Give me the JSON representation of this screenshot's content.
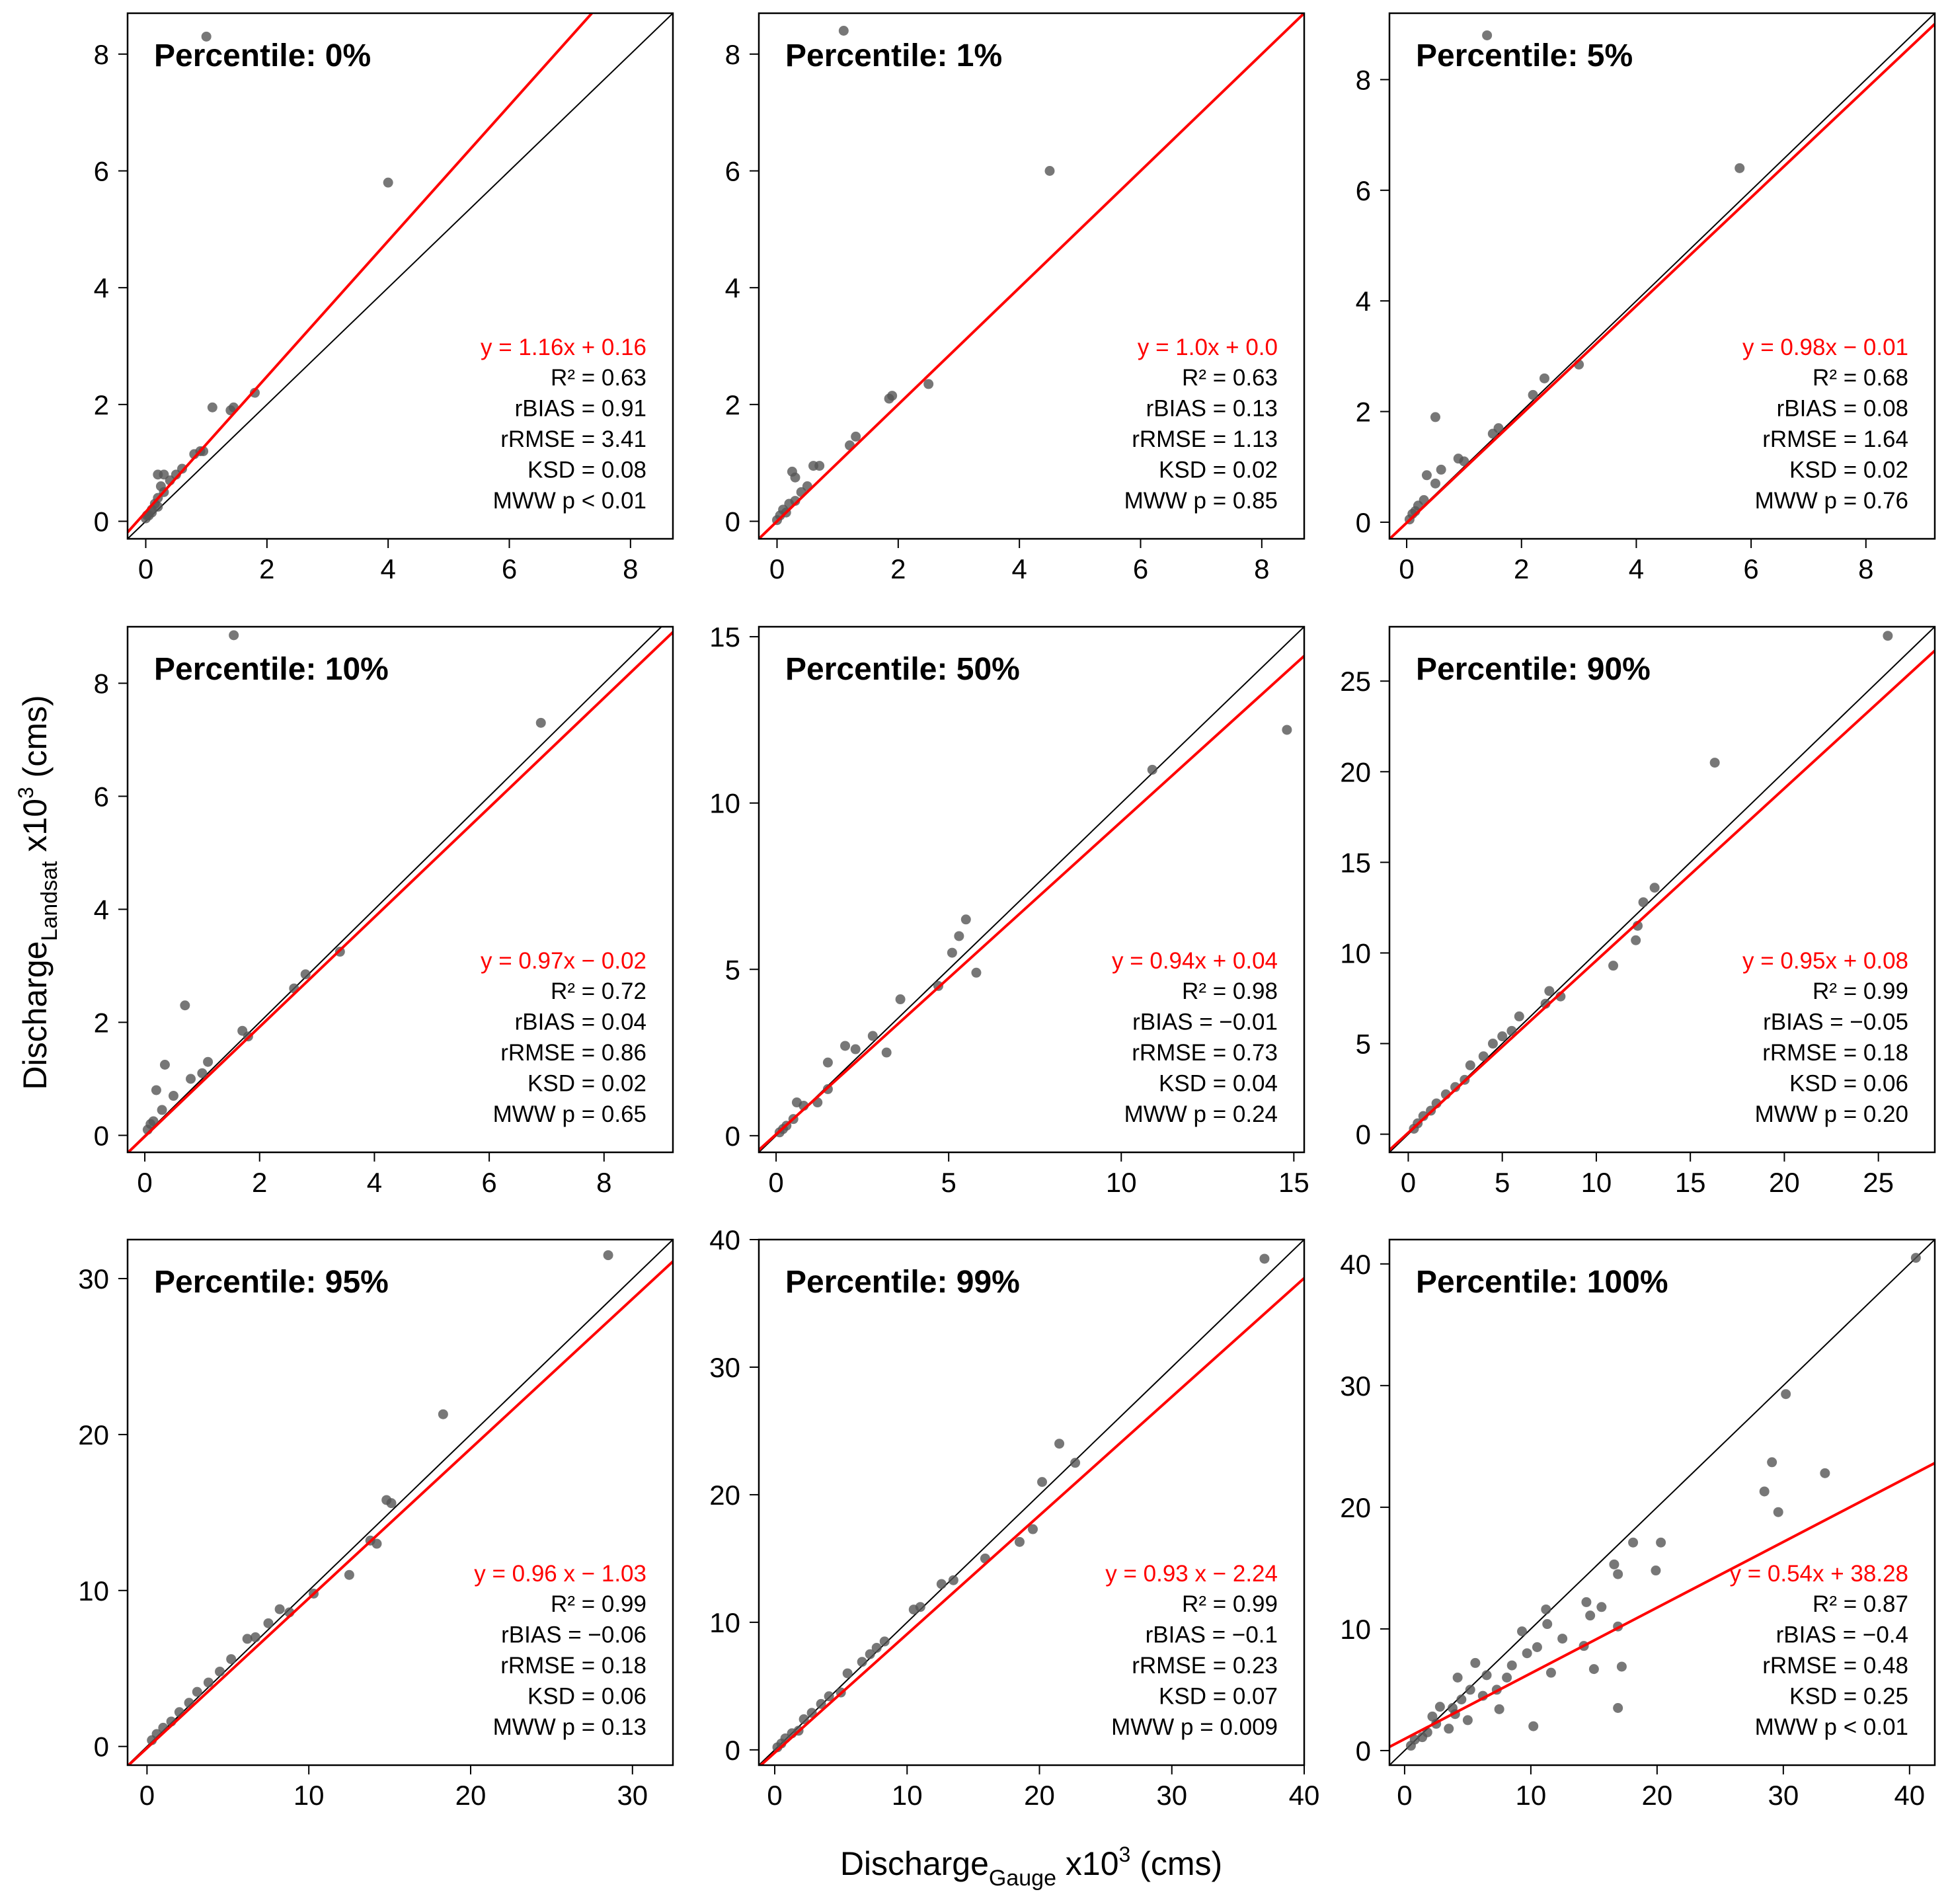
{
  "figure": {
    "xlabel": {
      "main": "Discharge",
      "sub": "Gauge",
      "rest": " x10",
      "sup": "3",
      "unit": " (cms)"
    },
    "ylabel": {
      "main": "Discharge",
      "sub": "Landsat",
      "rest": " x10",
      "sup": "3",
      "unit": " (cms)"
    }
  },
  "colors": {
    "regression_line": "#ff0000",
    "one_to_one_line": "#000000",
    "points": "#555555",
    "frame": "#000000"
  },
  "chart_data": [
    {
      "type": "scatter",
      "title": "Percentile: 0%",
      "xlim": [
        -0.3,
        8.7
      ],
      "ylim": [
        -0.3,
        8.7
      ],
      "xticks": [
        0,
        2,
        4,
        6,
        8
      ],
      "yticks": [
        0,
        2,
        4,
        6,
        8
      ],
      "regression": {
        "slope": 1.16,
        "intercept": 0.16,
        "label": "y = 1.16x + 0.16"
      },
      "stats": [
        "R² = 0.63",
        "rBIAS = 0.91",
        "rRMSE = 3.41",
        "KSD = 0.08",
        "MWW p < 0.01"
      ],
      "points": [
        [
          1.0,
          8.3
        ],
        [
          4.0,
          5.8
        ],
        [
          1.8,
          2.2
        ],
        [
          1.1,
          1.95
        ],
        [
          1.4,
          1.9
        ],
        [
          1.45,
          1.95
        ],
        [
          0.9,
          1.2
        ],
        [
          0.95,
          1.2
        ],
        [
          0.8,
          1.15
        ],
        [
          0.6,
          0.9
        ],
        [
          0.5,
          0.8
        ],
        [
          0.2,
          0.8
        ],
        [
          0.3,
          0.8
        ],
        [
          0.25,
          0.6
        ],
        [
          0.4,
          0.7
        ],
        [
          0.3,
          0.5
        ],
        [
          0.2,
          0.4
        ],
        [
          0.15,
          0.3
        ],
        [
          0.1,
          0.2
        ],
        [
          0.05,
          0.1
        ],
        [
          0.0,
          0.05
        ],
        [
          0.02,
          0.1
        ],
        [
          0.1,
          0.15
        ],
        [
          0.2,
          0.25
        ]
      ]
    },
    {
      "type": "scatter",
      "title": "Percentile: 1%",
      "xlim": [
        -0.3,
        8.7
      ],
      "ylim": [
        -0.3,
        8.7
      ],
      "xticks": [
        0,
        2,
        4,
        6,
        8
      ],
      "yticks": [
        0,
        2,
        4,
        6,
        8
      ],
      "regression": {
        "slope": 1.0,
        "intercept": 0.0,
        "label": "y = 1.0x + 0.0"
      },
      "stats": [
        "R² = 0.63",
        "rBIAS = 0.13",
        "rRMSE = 1.13",
        "KSD = 0.02",
        "MWW p = 0.85"
      ],
      "points": [
        [
          1.1,
          8.4
        ],
        [
          4.5,
          6.0
        ],
        [
          2.5,
          2.35
        ],
        [
          1.9,
          2.15
        ],
        [
          1.85,
          2.1
        ],
        [
          1.3,
          1.45
        ],
        [
          1.2,
          1.3
        ],
        [
          0.7,
          0.95
        ],
        [
          0.6,
          0.95
        ],
        [
          0.25,
          0.85
        ],
        [
          0.3,
          0.75
        ],
        [
          0.5,
          0.6
        ],
        [
          0.4,
          0.5
        ],
        [
          0.2,
          0.3
        ],
        [
          0.1,
          0.2
        ],
        [
          0.05,
          0.1
        ],
        [
          0.0,
          0.02
        ],
        [
          0.15,
          0.15
        ],
        [
          0.3,
          0.35
        ]
      ]
    },
    {
      "type": "scatter",
      "title": "Percentile: 5%",
      "xlim": [
        -0.3,
        9.2
      ],
      "ylim": [
        -0.3,
        9.2
      ],
      "xticks": [
        0,
        2,
        4,
        6,
        8
      ],
      "yticks": [
        0,
        2,
        4,
        6,
        8
      ],
      "regression": {
        "slope": 0.98,
        "intercept": -0.01,
        "label": "y = 0.98x − 0.01"
      },
      "stats": [
        "R² = 0.68",
        "rBIAS = 0.08",
        "rRMSE = 1.64",
        "KSD = 0.02",
        "MWW p = 0.76"
      ],
      "points": [
        [
          1.4,
          8.8
        ],
        [
          5.8,
          6.4
        ],
        [
          3.0,
          2.85
        ],
        [
          2.4,
          2.6
        ],
        [
          2.2,
          2.3
        ],
        [
          1.6,
          1.7
        ],
        [
          1.5,
          1.6
        ],
        [
          0.5,
          1.9
        ],
        [
          0.9,
          1.15
        ],
        [
          1.0,
          1.1
        ],
        [
          0.6,
          0.95
        ],
        [
          0.35,
          0.85
        ],
        [
          0.5,
          0.7
        ],
        [
          0.2,
          0.3
        ],
        [
          0.3,
          0.4
        ],
        [
          0.1,
          0.15
        ],
        [
          0.05,
          0.05
        ],
        [
          0.15,
          0.2
        ]
      ]
    },
    {
      "type": "scatter",
      "title": "Percentile: 10%",
      "xlim": [
        -0.3,
        9.2
      ],
      "ylim": [
        -0.3,
        9.0
      ],
      "xticks": [
        0,
        2,
        4,
        6,
        8
      ],
      "yticks": [
        0,
        2,
        4,
        6,
        8
      ],
      "regression": {
        "slope": 0.97,
        "intercept": -0.02,
        "label": "y = 0.97x − 0.02"
      },
      "stats": [
        "R² = 0.72",
        "rBIAS = 0.04",
        "rRMSE = 0.86",
        "KSD = 0.02",
        "MWW p = 0.65"
      ],
      "points": [
        [
          1.55,
          8.85
        ],
        [
          6.9,
          7.3
        ],
        [
          3.4,
          3.25
        ],
        [
          2.8,
          2.85
        ],
        [
          2.6,
          2.6
        ],
        [
          1.7,
          1.85
        ],
        [
          1.8,
          1.75
        ],
        [
          0.7,
          2.3
        ],
        [
          0.35,
          1.25
        ],
        [
          1.0,
          1.1
        ],
        [
          1.1,
          1.3
        ],
        [
          0.8,
          1.0
        ],
        [
          0.5,
          0.7
        ],
        [
          0.2,
          0.8
        ],
        [
          0.3,
          0.45
        ],
        [
          0.1,
          0.2
        ],
        [
          0.05,
          0.1
        ],
        [
          0.15,
          0.25
        ]
      ]
    },
    {
      "type": "scatter",
      "title": "Percentile: 50%",
      "xlim": [
        -0.5,
        15.3
      ],
      "ylim": [
        -0.5,
        15.3
      ],
      "xticks": [
        0,
        5,
        10,
        15
      ],
      "yticks": [
        0,
        5,
        10,
        15
      ],
      "regression": {
        "slope": 0.94,
        "intercept": 0.04,
        "label": "y = 0.94x + 0.04"
      },
      "stats": [
        "R² = 0.98",
        "rBIAS = −0.01",
        "rRMSE = 0.73",
        "KSD = 0.04",
        "MWW p = 0.24"
      ],
      "points": [
        [
          14.8,
          12.2
        ],
        [
          10.9,
          11.0
        ],
        [
          5.5,
          6.5
        ],
        [
          5.3,
          6.0
        ],
        [
          5.1,
          5.5
        ],
        [
          5.8,
          4.9
        ],
        [
          4.7,
          4.5
        ],
        [
          3.6,
          4.1
        ],
        [
          3.2,
          2.5
        ],
        [
          2.8,
          3.0
        ],
        [
          2.3,
          2.6
        ],
        [
          2.0,
          2.7
        ],
        [
          1.5,
          2.2
        ],
        [
          1.5,
          1.4
        ],
        [
          1.2,
          1.0
        ],
        [
          0.6,
          1.0
        ],
        [
          0.8,
          0.9
        ],
        [
          0.5,
          0.5
        ],
        [
          0.3,
          0.3
        ],
        [
          0.1,
          0.1
        ],
        [
          0.2,
          0.2
        ]
      ]
    },
    {
      "type": "scatter",
      "title": "Percentile: 90%",
      "xlim": [
        -1.0,
        28.0
      ],
      "ylim": [
        -1.0,
        28.0
      ],
      "xticks": [
        0,
        5,
        10,
        15,
        20,
        25
      ],
      "yticks": [
        0,
        5,
        10,
        15,
        20,
        25
      ],
      "regression": {
        "slope": 0.95,
        "intercept": 0.08,
        "label": "y = 0.95x + 0.08"
      },
      "stats": [
        "R² = 0.99",
        "rBIAS = −0.05",
        "rRMSE = 0.18",
        "KSD = 0.06",
        "MWW p = 0.20"
      ],
      "points": [
        [
          25.5,
          27.5
        ],
        [
          16.3,
          20.5
        ],
        [
          13.1,
          13.6
        ],
        [
          12.5,
          12.8
        ],
        [
          12.2,
          11.5
        ],
        [
          12.1,
          10.7
        ],
        [
          10.9,
          9.3
        ],
        [
          8.1,
          7.6
        ],
        [
          7.5,
          7.9
        ],
        [
          7.3,
          7.2
        ],
        [
          5.9,
          6.5
        ],
        [
          5.5,
          5.7
        ],
        [
          5.0,
          5.4
        ],
        [
          4.5,
          5.0
        ],
        [
          4.0,
          4.3
        ],
        [
          3.3,
          3.8
        ],
        [
          3.0,
          3.0
        ],
        [
          2.5,
          2.6
        ],
        [
          2.0,
          2.2
        ],
        [
          1.5,
          1.7
        ],
        [
          1.2,
          1.3
        ],
        [
          0.8,
          1.0
        ],
        [
          0.5,
          0.6
        ],
        [
          0.3,
          0.3
        ]
      ]
    },
    {
      "type": "scatter",
      "title": "Percentile: 95%",
      "xlim": [
        -1.2,
        32.5
      ],
      "ylim": [
        -1.2,
        32.5
      ],
      "xticks": [
        0,
        10,
        20,
        30
      ],
      "yticks": [
        0,
        10,
        20,
        30
      ],
      "regression": {
        "slope": 0.96,
        "intercept": -1.03,
        "label": "y = 0.96 x − 1.03"
      },
      "stats": [
        "R² = 0.99",
        "rBIAS = −0.06",
        "rRMSE = 0.18",
        "KSD = 0.06",
        "MWW p = 0.13"
      ],
      "points": [
        [
          28.5,
          31.5
        ],
        [
          18.3,
          21.3
        ],
        [
          15.1,
          15.6
        ],
        [
          14.8,
          15.8
        ],
        [
          14.2,
          13.0
        ],
        [
          13.8,
          13.2
        ],
        [
          12.5,
          11.0
        ],
        [
          10.3,
          9.8
        ],
        [
          8.8,
          8.6
        ],
        [
          8.2,
          8.8
        ],
        [
          7.5,
          7.9
        ],
        [
          6.7,
          7.0
        ],
        [
          6.2,
          6.9
        ],
        [
          5.2,
          5.6
        ],
        [
          4.5,
          4.8
        ],
        [
          3.8,
          4.1
        ],
        [
          3.1,
          3.5
        ],
        [
          2.6,
          2.8
        ],
        [
          2.0,
          2.2
        ],
        [
          1.5,
          1.6
        ],
        [
          1.0,
          1.2
        ],
        [
          0.6,
          0.8
        ],
        [
          0.3,
          0.4
        ]
      ]
    },
    {
      "type": "scatter",
      "title": "Percentile: 99%",
      "xlim": [
        -1.2,
        40.0
      ],
      "ylim": [
        -1.2,
        40.0
      ],
      "xticks": [
        0,
        10,
        20,
        30,
        40
      ],
      "yticks": [
        0,
        10,
        20,
        30,
        40
      ],
      "regression": {
        "slope": 0.93,
        "intercept": -2.24,
        "label": "y = 0.93 x − 2.24"
      },
      "stats": [
        "R² = 0.99",
        "rBIAS = −0.1",
        "rRMSE = 0.23",
        "KSD = 0.07",
        "MWW p = 0.009"
      ],
      "points": [
        [
          37.0,
          38.5
        ],
        [
          21.5,
          24.0
        ],
        [
          22.7,
          22.5
        ],
        [
          20.2,
          21.0
        ],
        [
          19.5,
          17.3
        ],
        [
          18.5,
          16.3
        ],
        [
          15.9,
          15.0
        ],
        [
          13.5,
          13.3
        ],
        [
          12.6,
          13.0
        ],
        [
          11.0,
          11.2
        ],
        [
          10.5,
          11.0
        ],
        [
          8.3,
          8.5
        ],
        [
          7.7,
          8.0
        ],
        [
          7.2,
          7.5
        ],
        [
          6.6,
          6.9
        ],
        [
          5.5,
          6.0
        ],
        [
          5.0,
          4.5
        ],
        [
          4.1,
          4.2
        ],
        [
          3.5,
          3.6
        ],
        [
          2.8,
          2.9
        ],
        [
          2.2,
          2.4
        ],
        [
          1.8,
          1.5
        ],
        [
          1.3,
          1.3
        ],
        [
          0.8,
          0.9
        ],
        [
          0.5,
          0.5
        ],
        [
          0.2,
          0.2
        ]
      ]
    },
    {
      "type": "scatter",
      "title": "Percentile: 100%",
      "xlim": [
        -1.2,
        42.0
      ],
      "ylim": [
        -1.2,
        42.0
      ],
      "xticks": [
        0,
        10,
        20,
        30,
        40
      ],
      "yticks": [
        0,
        10,
        20,
        30,
        40
      ],
      "regression": {
        "slope": 0.54,
        "intercept": 38.28,
        "label": "y = 0.54x + 38.28"
      },
      "stats": [
        "R² = 0.87",
        "rBIAS = −0.4",
        "rRMSE = 0.48",
        "KSD = 0.25",
        "MWW p < 0.01"
      ],
      "points": [
        [
          40.5,
          40.5
        ],
        [
          30.2,
          29.3
        ],
        [
          29.1,
          23.7
        ],
        [
          28.5,
          21.3
        ],
        [
          29.6,
          19.6
        ],
        [
          33.3,
          22.8
        ],
        [
          18.1,
          17.1
        ],
        [
          20.3,
          17.1
        ],
        [
          16.6,
          15.3
        ],
        [
          16.9,
          14.5
        ],
        [
          19.9,
          14.8
        ],
        [
          15.6,
          11.8
        ],
        [
          16.9,
          10.2
        ],
        [
          14.4,
          12.2
        ],
        [
          14.7,
          11.1
        ],
        [
          14.2,
          8.6
        ],
        [
          15.0,
          6.7
        ],
        [
          17.2,
          6.9
        ],
        [
          11.3,
          10.4
        ],
        [
          12.5,
          9.2
        ],
        [
          10.5,
          8.5
        ],
        [
          9.3,
          9.8
        ],
        [
          9.7,
          8.0
        ],
        [
          11.2,
          11.6
        ],
        [
          16.9,
          3.5
        ],
        [
          10.2,
          2.0
        ],
        [
          11.6,
          6.4
        ],
        [
          8.1,
          6.0
        ],
        [
          7.3,
          5.0
        ],
        [
          6.5,
          6.2
        ],
        [
          6.2,
          4.5
        ],
        [
          5.2,
          5.0
        ],
        [
          4.5,
          4.2
        ],
        [
          3.8,
          3.5
        ],
        [
          2.5,
          2.2
        ],
        [
          2.8,
          3.6
        ],
        [
          1.8,
          1.5
        ],
        [
          1.4,
          1.1
        ],
        [
          0.8,
          0.9
        ],
        [
          0.5,
          0.4
        ],
        [
          4.2,
          6.0
        ],
        [
          5.6,
          7.2
        ],
        [
          3.5,
          1.8
        ],
        [
          2.2,
          2.8
        ],
        [
          7.5,
          3.4
        ],
        [
          8.5,
          7.0
        ],
        [
          5.0,
          2.5
        ],
        [
          4.0,
          3.0
        ]
      ]
    }
  ]
}
